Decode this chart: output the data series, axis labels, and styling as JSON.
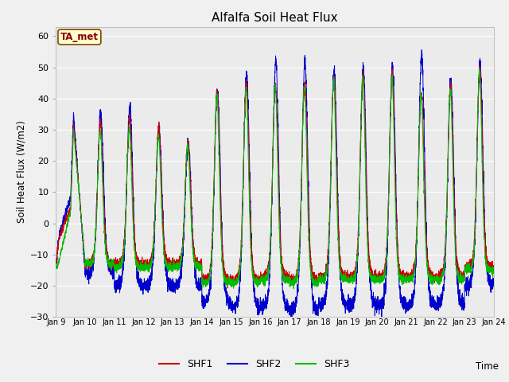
{
  "title": "Alfalfa Soil Heat Flux",
  "ylabel": "Soil Heat Flux (W/m2)",
  "xlabel": "Time",
  "ylim": [
    -30,
    63
  ],
  "yticks": [
    -30,
    -20,
    -10,
    0,
    10,
    20,
    30,
    40,
    50,
    60
  ],
  "fig_bg_color": "#f0f0f0",
  "plot_bg_color": "#f0f0f0",
  "grid_color": "#cccccc",
  "line_colors": {
    "SHF1": "#cc0000",
    "SHF2": "#0000cc",
    "SHF3": "#00bb00"
  },
  "annotation_text": "TA_met",
  "annotation_bg": "#ffffcc",
  "annotation_border": "#884400",
  "days": 15,
  "start_day": 9,
  "points_per_day": 288,
  "seed": 123
}
